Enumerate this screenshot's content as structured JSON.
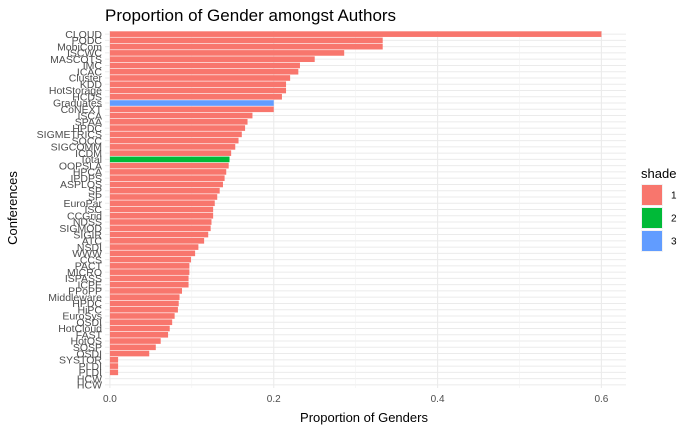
{
  "chart_data": {
    "type": "bar",
    "orientation": "horizontal",
    "title": "Proportion of Gender amongst Authors",
    "xlabel": "Proportion of Genders",
    "ylabel": "Conferences",
    "xlim": [
      -0.006,
      0.63
    ],
    "xticks": [
      0.0,
      0.2,
      0.4,
      0.6
    ],
    "xtick_labels": [
      "0.0",
      "0.2",
      "0.4",
      "0.6"
    ],
    "grid": true,
    "legend": {
      "title": "shade",
      "placement": "right",
      "entries": [
        {
          "label": "1",
          "color": "#F8766D"
        },
        {
          "label": "2",
          "color": "#00BA38"
        },
        {
          "label": "3",
          "color": "#619CFF"
        }
      ]
    },
    "bars": [
      {
        "label": "CLOUD",
        "value": 0.6,
        "shade": "1"
      },
      {
        "label": "PODC",
        "value": 0.333,
        "shade": "1"
      },
      {
        "label": "MobiCom",
        "value": 0.333,
        "shade": "1"
      },
      {
        "label": "ISCWC",
        "value": 0.286,
        "shade": "1"
      },
      {
        "label": "MASCOTS",
        "value": 0.25,
        "shade": "1"
      },
      {
        "label": "IMC",
        "value": 0.232,
        "shade": "1"
      },
      {
        "label": "ICAC",
        "value": 0.23,
        "shade": "1"
      },
      {
        "label": "Cluster",
        "value": 0.22,
        "shade": "1"
      },
      {
        "label": "KDD",
        "value": 0.215,
        "shade": "1"
      },
      {
        "label": "HotStorage",
        "value": 0.215,
        "shade": "1"
      },
      {
        "label": "HCDS",
        "value": 0.21,
        "shade": "1"
      },
      {
        "label": "Graduates",
        "value": 0.2,
        "shade": "3"
      },
      {
        "label": "CoNEXT",
        "value": 0.2,
        "shade": "1"
      },
      {
        "label": "ISCA",
        "value": 0.174,
        "shade": "1"
      },
      {
        "label": "SPAA",
        "value": 0.168,
        "shade": "1"
      },
      {
        "label": "HPDC",
        "value": 0.165,
        "shade": "1"
      },
      {
        "label": "SIGMETRICS",
        "value": 0.161,
        "shade": "1"
      },
      {
        "label": "SOCC",
        "value": 0.157,
        "shade": "1"
      },
      {
        "label": "SIGCOMM",
        "value": 0.153,
        "shade": "1"
      },
      {
        "label": "ICDM",
        "value": 0.148,
        "shade": "1"
      },
      {
        "label": "Total",
        "value": 0.146,
        "shade": "2"
      },
      {
        "label": "OOPSLA",
        "value": 0.145,
        "shade": "1"
      },
      {
        "label": "HPCA",
        "value": 0.142,
        "shade": "1"
      },
      {
        "label": "IPDPS",
        "value": 0.14,
        "shade": "1"
      },
      {
        "label": "ASPLOS",
        "value": 0.138,
        "shade": "1"
      },
      {
        "label": "SP",
        "value": 0.134,
        "shade": "1"
      },
      {
        "label": "SP",
        "value": 0.131,
        "shade": "1"
      },
      {
        "label": "EuroPar",
        "value": 0.128,
        "shade": "1"
      },
      {
        "label": "ISC",
        "value": 0.126,
        "shade": "1"
      },
      {
        "label": "CCGrid",
        "value": 0.126,
        "shade": "1"
      },
      {
        "label": "NDSS",
        "value": 0.124,
        "shade": "1"
      },
      {
        "label": "SIGMOD",
        "value": 0.123,
        "shade": "1"
      },
      {
        "label": "SIGIR",
        "value": 0.12,
        "shade": "1"
      },
      {
        "label": "ATC",
        "value": 0.115,
        "shade": "1"
      },
      {
        "label": "NSDI",
        "value": 0.108,
        "shade": "1"
      },
      {
        "label": "WWW",
        "value": 0.104,
        "shade": "1"
      },
      {
        "label": "CCS",
        "value": 0.099,
        "shade": "1"
      },
      {
        "label": "PACT",
        "value": 0.097,
        "shade": "1"
      },
      {
        "label": "MICRO",
        "value": 0.097,
        "shade": "1"
      },
      {
        "label": "ISPASS",
        "value": 0.096,
        "shade": "1"
      },
      {
        "label": "ICPE",
        "value": 0.096,
        "shade": "1"
      },
      {
        "label": "PPoPP",
        "value": 0.088,
        "shade": "1"
      },
      {
        "label": "Middleware",
        "value": 0.085,
        "shade": "1"
      },
      {
        "label": "HPDC",
        "value": 0.084,
        "shade": "1"
      },
      {
        "label": "HiPC",
        "value": 0.083,
        "shade": "1"
      },
      {
        "label": "EuroSys",
        "value": 0.079,
        "shade": "1"
      },
      {
        "label": "OSDI",
        "value": 0.076,
        "shade": "1"
      },
      {
        "label": "HotCloud",
        "value": 0.073,
        "shade": "1"
      },
      {
        "label": "FAST",
        "value": 0.071,
        "shade": "1"
      },
      {
        "label": "HotOS",
        "value": 0.062,
        "shade": "1"
      },
      {
        "label": "SOSP",
        "value": 0.056,
        "shade": "1"
      },
      {
        "label": "OSDI",
        "value": 0.048,
        "shade": "1"
      },
      {
        "label": "SYSTOR",
        "value": 0.01,
        "shade": "1"
      },
      {
        "label": "PLDI",
        "value": 0.01,
        "shade": "1"
      },
      {
        "label": "PLDI",
        "value": 0.01,
        "shade": "1"
      },
      {
        "label": "HCW",
        "value": 0.0,
        "shade": "1"
      },
      {
        "label": "HCW",
        "value": 0.0,
        "shade": "1"
      }
    ]
  }
}
